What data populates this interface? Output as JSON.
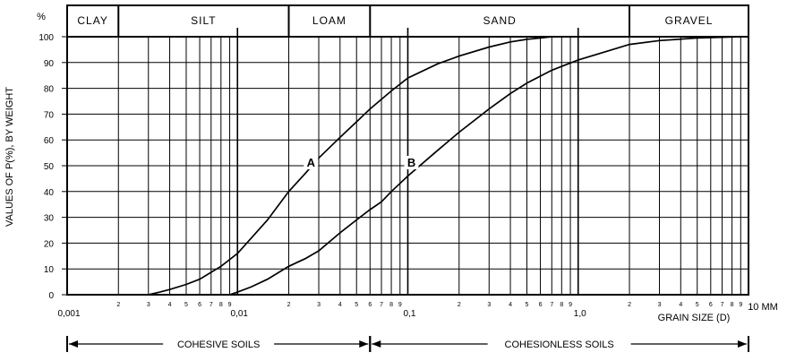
{
  "chart_data": {
    "type": "line",
    "y_unit_label": "%",
    "ylabel": "VALUES OF P(%), BY WEIGHT",
    "xlabel": "GRAIN SIZE (D)",
    "x_unit_label": "10 MM",
    "x_scale": "log",
    "xlim": [
      0.001,
      10
    ],
    "ylim": [
      0,
      100
    ],
    "y_ticks": [
      "0",
      "10",
      "20",
      "30",
      "40",
      "50",
      "60",
      "70",
      "80",
      "90",
      "100"
    ],
    "x_decade_labels": [
      "0,001",
      "0,01",
      "0,1",
      "1,0"
    ],
    "x_minor_labels": [
      "2",
      "3",
      "4",
      "5",
      "6",
      "7",
      "8",
      "9"
    ],
    "soil_classes": [
      {
        "name": "CLAY",
        "from": 0.001,
        "to": 0.002
      },
      {
        "name": "SILT",
        "from": 0.002,
        "to": 0.02
      },
      {
        "name": "LOAM",
        "from": 0.02,
        "to": 0.06
      },
      {
        "name": "SAND",
        "from": 0.06,
        "to": 2
      },
      {
        "name": "GRAVEL",
        "from": 2,
        "to": 10
      }
    ],
    "series": [
      {
        "name": "A",
        "x": [
          0.003,
          0.0035,
          0.004,
          0.005,
          0.006,
          0.008,
          0.01,
          0.015,
          0.02,
          0.025,
          0.03,
          0.04,
          0.05,
          0.06,
          0.08,
          0.1,
          0.15,
          0.2,
          0.3,
          0.4,
          0.5,
          0.6,
          0.7,
          0.8,
          1.0
        ],
        "y": [
          0,
          1,
          2,
          4,
          6,
          11,
          16,
          29,
          40,
          47,
          53,
          61,
          67,
          72,
          79,
          84,
          89.5,
          92.5,
          96,
          98,
          99,
          99.5,
          100,
          100,
          100
        ]
      },
      {
        "name": "B",
        "x": [
          0.009,
          0.01,
          0.012,
          0.015,
          0.02,
          0.025,
          0.03,
          0.04,
          0.05,
          0.06,
          0.07,
          0.08,
          0.1,
          0.15,
          0.2,
          0.3,
          0.4,
          0.5,
          0.7,
          1.0,
          1.5,
          2.0,
          3.0,
          5.0,
          9.0
        ],
        "y": [
          0,
          1,
          3,
          6,
          11,
          14,
          17,
          24,
          29,
          33,
          36,
          40,
          46,
          56,
          63,
          72,
          78,
          82,
          87,
          91,
          94.5,
          97,
          98.5,
          99.5,
          100
        ]
      }
    ],
    "curve_labels": [
      {
        "text": "A",
        "x": 0.027,
        "y": 50
      },
      {
        "text": "B",
        "x": 0.105,
        "y": 50
      }
    ],
    "groups": [
      {
        "name": "COHESIVE  SOILS",
        "from": 0.001,
        "to": 0.06
      },
      {
        "name": "COHESIONLESS   SOILS",
        "from": 0.06,
        "to": 10
      }
    ],
    "grid": true
  }
}
